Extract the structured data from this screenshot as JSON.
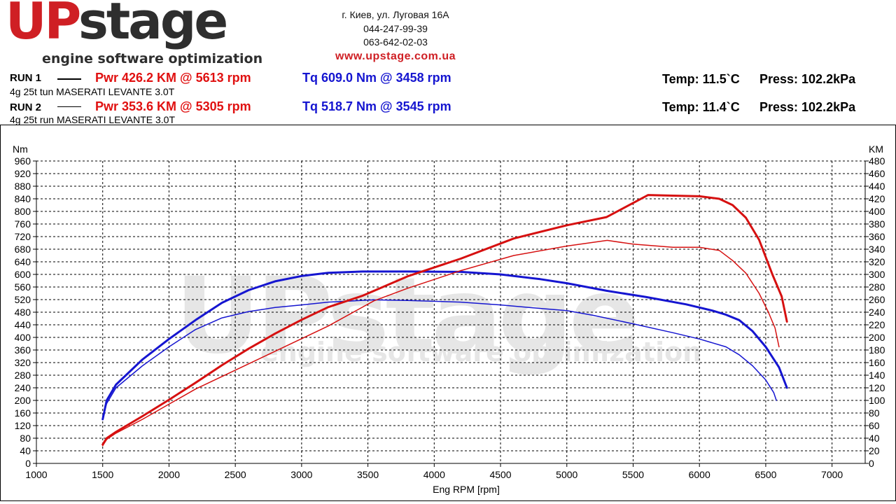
{
  "logo": {
    "brand_up": "UP",
    "brand_rest": "stage",
    "tagline": "engine software optimization",
    "watermark_main": "UPstage",
    "watermark_sub": "engine software optimization"
  },
  "contact": {
    "address": "г. Киев, ул. Луговая 16А",
    "phone1": "044-247-99-39",
    "phone2": "063-642-02-03",
    "website": "www.upstage.com.ua"
  },
  "runs": [
    {
      "label": "RUN 1",
      "description": "4g 25t tun MASERATI LEVANTE 3.0T",
      "power": "Pwr  426.2 KM @ 5613 rpm",
      "torque": "Tq 609.0 Nm @ 3458 rpm",
      "temp": "Temp: 11.5`C",
      "press": "Press: 102.2kPa"
    },
    {
      "label": "RUN 2",
      "description": "4g 25t run MASERATI LEVANTE 3.0T",
      "power": "Pwr  353.6 KM @ 5305 rpm",
      "torque": "Tq 518.7 Nm @ 3545 rpm",
      "temp": "Temp: 11.4`C",
      "press": "Press: 102.2kPa"
    }
  ],
  "chart_data": {
    "type": "line",
    "xlabel": "Eng RPM [rpm]",
    "ylabel_left": "Nm",
    "ylabel_right": "KM",
    "xlim": [
      1000,
      7250
    ],
    "ylim_left": [
      0,
      960
    ],
    "ylim_right": [
      0,
      480
    ],
    "x_ticks": [
      1000,
      1500,
      2000,
      2500,
      3000,
      3500,
      4000,
      4500,
      5000,
      5500,
      6000,
      6500,
      7000
    ],
    "y_ticks_left": [
      0,
      40,
      80,
      120,
      160,
      200,
      240,
      280,
      320,
      360,
      400,
      440,
      480,
      520,
      560,
      600,
      640,
      680,
      720,
      760,
      800,
      840,
      880,
      920,
      960
    ],
    "y_ticks_right": [
      0,
      20,
      40,
      60,
      80,
      100,
      120,
      140,
      160,
      180,
      200,
      220,
      240,
      260,
      280,
      300,
      320,
      340,
      360,
      380,
      400,
      420,
      440,
      460,
      480
    ],
    "grid": true,
    "series": [
      {
        "name": "RUN 1 Tq",
        "axis": "left",
        "color": "#1515d0",
        "width": 3,
        "x": [
          1500,
          1530,
          1600,
          1800,
          2000,
          2200,
          2400,
          2600,
          2800,
          3000,
          3200,
          3458,
          3800,
          4200,
          4500,
          4800,
          5000,
          5300,
          5600,
          5900,
          6100,
          6200,
          6300,
          6400,
          6500,
          6600,
          6660
        ],
        "y": [
          140,
          200,
          250,
          330,
          395,
          455,
          510,
          550,
          578,
          595,
          605,
          609,
          609,
          608,
          600,
          585,
          572,
          548,
          528,
          505,
          485,
          472,
          455,
          420,
          370,
          305,
          240
        ]
      },
      {
        "name": "RUN 2 Tq",
        "axis": "left",
        "color": "#1515d0",
        "width": 1.5,
        "x": [
          1500,
          1530,
          1600,
          1800,
          2000,
          2200,
          2400,
          2600,
          2800,
          3000,
          3200,
          3545,
          3800,
          4200,
          4500,
          4800,
          5000,
          5200,
          5500,
          5800,
          6000,
          6200,
          6300,
          6400,
          6500,
          6560,
          6580
        ],
        "y": [
          150,
          190,
          240,
          310,
          370,
          425,
          462,
          482,
          495,
          503,
          512,
          519,
          517,
          512,
          503,
          492,
          485,
          470,
          443,
          415,
          395,
          370,
          345,
          310,
          265,
          225,
          200
        ]
      },
      {
        "name": "RUN 1 Pwr",
        "axis": "right",
        "color": "#d61010",
        "width": 3,
        "x": [
          1500,
          1530,
          1600,
          1800,
          2000,
          2200,
          2400,
          2600,
          2800,
          3000,
          3200,
          3458,
          3800,
          4200,
          4600,
          5000,
          5300,
          5613,
          5800,
          6000,
          6150,
          6250,
          6350,
          6450,
          6550,
          6620,
          6660
        ],
        "y": [
          30,
          40,
          50,
          75,
          101,
          128,
          156,
          182,
          206,
          228,
          248,
          266,
          297,
          325,
          357,
          378,
          391,
          426,
          425,
          424,
          420,
          410,
          390,
          355,
          300,
          265,
          225
        ]
      },
      {
        "name": "RUN 2 Pwr",
        "axis": "right",
        "color": "#d61010",
        "width": 1.5,
        "x": [
          1500,
          1530,
          1600,
          1800,
          2000,
          2200,
          2400,
          2600,
          2800,
          3000,
          3200,
          3545,
          3800,
          4200,
          4600,
          5000,
          5305,
          5500,
          5800,
          6000,
          6150,
          6250,
          6350,
          6450,
          6520,
          6570,
          6600
        ],
        "y": [
          28,
          38,
          48,
          70,
          94,
          118,
          138,
          158,
          178,
          198,
          218,
          258,
          278,
          306,
          330,
          345,
          354,
          348,
          343,
          343,
          338,
          322,
          302,
          270,
          240,
          215,
          185
        ]
      }
    ]
  }
}
